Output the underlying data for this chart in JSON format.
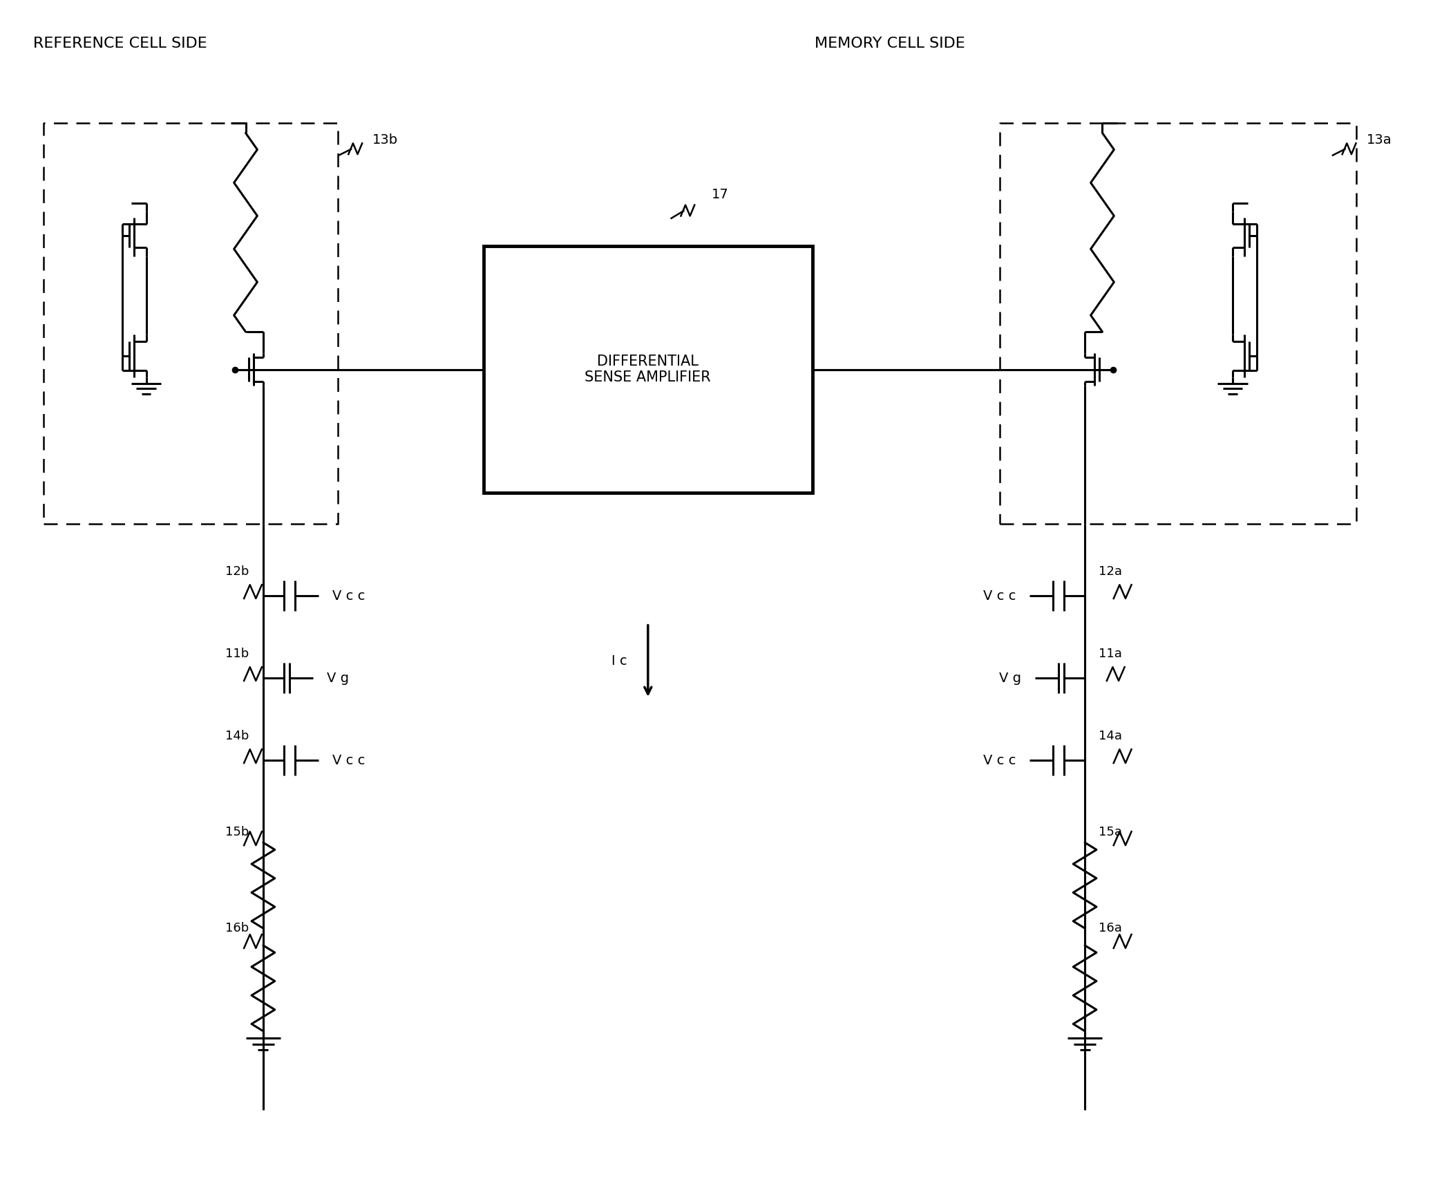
{
  "ref_cell_label": "REFERENCE CELL SIDE",
  "mem_cell_label": "MEMORY CELL SIDE",
  "amp_label": "DIFFERENTIAL\nSENSE AMPLIFIER",
  "bg": "#ffffff",
  "lc": "#000000",
  "lw": 2.2,
  "labels": {
    "13b": "13b",
    "13a": "13a",
    "17": "17",
    "12b": "12b",
    "11b": "11b",
    "14b": "14b",
    "15b": "15b",
    "16b": "16b",
    "12a": "12a",
    "11a": "11a",
    "14a": "14a",
    "15a": "15a",
    "16a": "16a",
    "Vcc_b1": "V c c",
    "Vg_b": "V g",
    "Vcc_b2": "V c c",
    "Vcc_a1": "V c c",
    "Vg_a": "V g",
    "Vcc_a2": "V c c",
    "Ic": "I c"
  }
}
